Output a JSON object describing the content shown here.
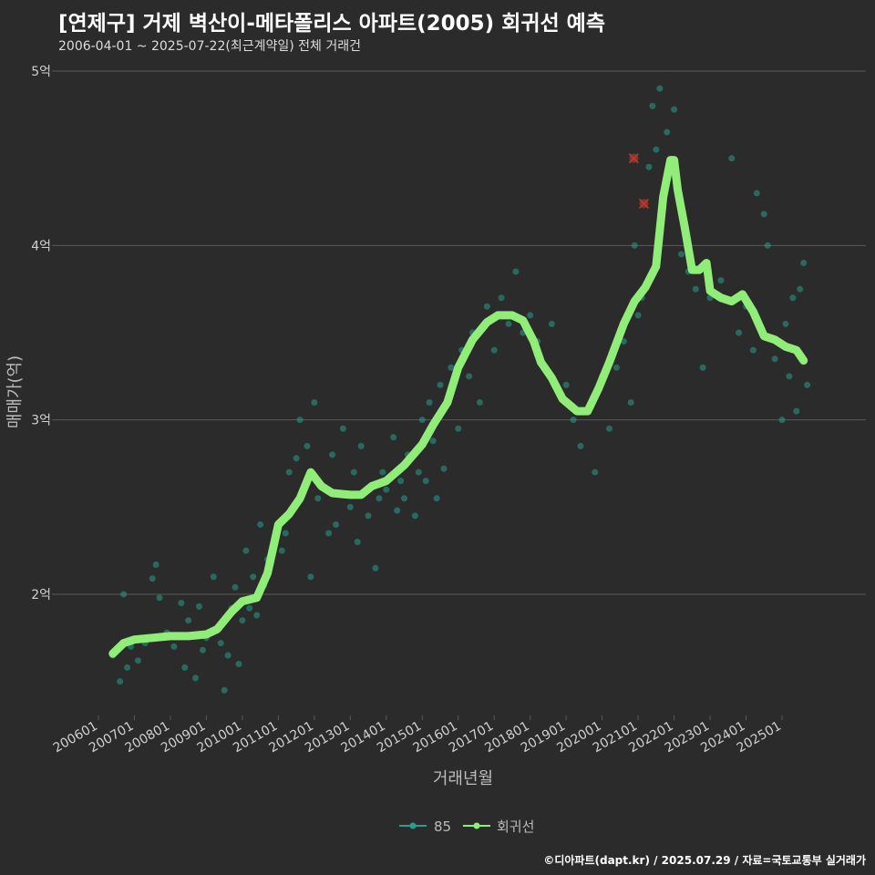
{
  "title": "[연제구] 거제 벽산이-메타폴리스 아파트(2005) 회귀선 예측",
  "subtitle": "2006-04-01 ~ 2025-07-22(최근계약일) 전체 거래건",
  "footer": "©디아파트(dapt.kr) / 2025.07.29 / 자료=국토교통부 실거래가",
  "colors": {
    "background": "#2b2b2c",
    "grid": "#5a5a5a",
    "scatter": "#2a9d8f",
    "line": "#90ee78",
    "outlier": "#c0392b",
    "text": "#cfcfcf"
  },
  "chart_data": {
    "type": "scatter",
    "xlabel": "거래년월",
    "ylabel": "매매가(억)",
    "x_unit": "year-fraction",
    "xlim": [
      2006.0,
      2026.5
    ],
    "ylim": [
      1.3,
      5.1
    ],
    "grid": true,
    "y_ticks": [
      {
        "value": 2,
        "label": "2억"
      },
      {
        "value": 3,
        "label": "3억"
      },
      {
        "value": 4,
        "label": "4억"
      },
      {
        "value": 5,
        "label": "5억"
      }
    ],
    "x_ticks": [
      {
        "value": 2006.0,
        "label": "200601"
      },
      {
        "value": 2007.0,
        "label": "200701"
      },
      {
        "value": 2008.0,
        "label": "200801"
      },
      {
        "value": 2009.0,
        "label": "200901"
      },
      {
        "value": 2010.0,
        "label": "201001"
      },
      {
        "value": 2011.0,
        "label": "201101"
      },
      {
        "value": 2012.0,
        "label": "201201"
      },
      {
        "value": 2013.0,
        "label": "201301"
      },
      {
        "value": 2014.0,
        "label": "201401"
      },
      {
        "value": 2015.0,
        "label": "201501"
      },
      {
        "value": 2016.0,
        "label": "201601"
      },
      {
        "value": 2017.0,
        "label": "201701"
      },
      {
        "value": 2018.0,
        "label": "201801"
      },
      {
        "value": 2019.0,
        "label": "201901"
      },
      {
        "value": 2020.0,
        "label": "202001"
      },
      {
        "value": 2021.0,
        "label": "202101"
      },
      {
        "value": 2022.0,
        "label": "202201"
      },
      {
        "value": 2023.0,
        "label": "202301"
      },
      {
        "value": 2024.0,
        "label": "202401"
      },
      {
        "value": 2025.0,
        "label": "202501"
      }
    ],
    "legend": {
      "placement": "bottom",
      "items": [
        "85",
        "회귀선"
      ]
    },
    "series": [
      {
        "name": "85",
        "kind": "scatter",
        "points": [
          [
            2006.4,
            1.65
          ],
          [
            2006.6,
            1.5
          ],
          [
            2006.7,
            2.0
          ],
          [
            2006.8,
            1.58
          ],
          [
            2006.9,
            1.7
          ],
          [
            2007.1,
            1.62
          ],
          [
            2007.3,
            1.72
          ],
          [
            2007.5,
            2.09
          ],
          [
            2007.6,
            2.17
          ],
          [
            2007.7,
            1.98
          ],
          [
            2007.9,
            1.78
          ],
          [
            2008.1,
            1.7
          ],
          [
            2008.3,
            1.95
          ],
          [
            2008.4,
            1.58
          ],
          [
            2008.5,
            1.85
          ],
          [
            2008.7,
            1.52
          ],
          [
            2008.8,
            1.93
          ],
          [
            2008.9,
            1.68
          ],
          [
            2009.0,
            1.75
          ],
          [
            2009.2,
            2.1
          ],
          [
            2009.3,
            1.8
          ],
          [
            2009.4,
            1.72
          ],
          [
            2009.5,
            1.45
          ],
          [
            2009.6,
            1.65
          ],
          [
            2009.7,
            1.92
          ],
          [
            2009.8,
            2.04
          ],
          [
            2009.9,
            1.6
          ],
          [
            2010.0,
            1.85
          ],
          [
            2010.1,
            2.25
          ],
          [
            2010.2,
            1.92
          ],
          [
            2010.3,
            2.1
          ],
          [
            2010.4,
            1.88
          ],
          [
            2010.5,
            2.4
          ],
          [
            2010.6,
            2.05
          ],
          [
            2010.7,
            2.2
          ],
          [
            2010.8,
            2.18
          ],
          [
            2010.9,
            2.3
          ],
          [
            2011.0,
            2.4
          ],
          [
            2011.1,
            2.25
          ],
          [
            2011.2,
            2.35
          ],
          [
            2011.3,
            2.7
          ],
          [
            2011.5,
            2.78
          ],
          [
            2011.6,
            3.0
          ],
          [
            2011.7,
            2.6
          ],
          [
            2011.8,
            2.85
          ],
          [
            2011.9,
            2.1
          ],
          [
            2012.0,
            3.1
          ],
          [
            2012.1,
            2.55
          ],
          [
            2012.2,
            2.62
          ],
          [
            2012.4,
            2.35
          ],
          [
            2012.5,
            2.8
          ],
          [
            2012.6,
            2.4
          ],
          [
            2012.8,
            2.95
          ],
          [
            2013.0,
            2.5
          ],
          [
            2013.1,
            2.7
          ],
          [
            2013.2,
            2.3
          ],
          [
            2013.3,
            2.85
          ],
          [
            2013.5,
            2.45
          ],
          [
            2013.7,
            2.15
          ],
          [
            2013.8,
            2.55
          ],
          [
            2013.9,
            2.7
          ],
          [
            2014.0,
            2.6
          ],
          [
            2014.2,
            2.9
          ],
          [
            2014.3,
            2.48
          ],
          [
            2014.4,
            2.65
          ],
          [
            2014.5,
            2.55
          ],
          [
            2014.6,
            2.8
          ],
          [
            2014.8,
            2.45
          ],
          [
            2014.9,
            2.7
          ],
          [
            2015.0,
            3.0
          ],
          [
            2015.1,
            2.65
          ],
          [
            2015.2,
            3.1
          ],
          [
            2015.3,
            2.88
          ],
          [
            2015.4,
            2.55
          ],
          [
            2015.5,
            3.2
          ],
          [
            2015.6,
            2.72
          ],
          [
            2015.8,
            3.3
          ],
          [
            2016.0,
            2.95
          ],
          [
            2016.1,
            3.4
          ],
          [
            2016.3,
            3.25
          ],
          [
            2016.4,
            3.5
          ],
          [
            2016.6,
            3.1
          ],
          [
            2016.8,
            3.65
          ],
          [
            2017.0,
            3.4
          ],
          [
            2017.2,
            3.7
          ],
          [
            2017.4,
            3.55
          ],
          [
            2017.6,
            3.85
          ],
          [
            2017.8,
            3.5
          ],
          [
            2018.0,
            3.6
          ],
          [
            2018.2,
            3.45
          ],
          [
            2018.4,
            3.3
          ],
          [
            2018.6,
            3.55
          ],
          [
            2018.8,
            3.15
          ],
          [
            2019.0,
            3.2
          ],
          [
            2019.2,
            3.0
          ],
          [
            2019.4,
            2.85
          ],
          [
            2019.6,
            3.05
          ],
          [
            2019.8,
            2.7
          ],
          [
            2020.0,
            3.25
          ],
          [
            2020.2,
            2.95
          ],
          [
            2020.4,
            3.3
          ],
          [
            2020.6,
            3.45
          ],
          [
            2020.8,
            3.1
          ],
          [
            2020.9,
            4.0
          ],
          [
            2021.0,
            3.6
          ],
          [
            2021.1,
            3.7
          ],
          [
            2021.3,
            4.45
          ],
          [
            2021.4,
            4.8
          ],
          [
            2021.5,
            4.55
          ],
          [
            2021.6,
            4.9
          ],
          [
            2021.8,
            4.65
          ],
          [
            2022.0,
            4.78
          ],
          [
            2022.2,
            3.95
          ],
          [
            2022.4,
            3.85
          ],
          [
            2022.6,
            3.75
          ],
          [
            2022.8,
            3.3
          ],
          [
            2023.0,
            3.7
          ],
          [
            2023.3,
            3.8
          ],
          [
            2023.6,
            4.5
          ],
          [
            2023.8,
            3.5
          ],
          [
            2024.0,
            3.65
          ],
          [
            2024.2,
            3.4
          ],
          [
            2024.3,
            4.3
          ],
          [
            2024.5,
            4.18
          ],
          [
            2024.6,
            4.0
          ],
          [
            2024.8,
            3.35
          ],
          [
            2025.0,
            3.0
          ],
          [
            2025.1,
            3.55
          ],
          [
            2025.2,
            3.25
          ],
          [
            2025.3,
            3.7
          ],
          [
            2025.4,
            3.05
          ],
          [
            2025.5,
            3.75
          ],
          [
            2025.6,
            3.9
          ],
          [
            2025.7,
            3.2
          ]
        ]
      },
      {
        "name": "회귀선",
        "kind": "line",
        "points": [
          [
            2006.4,
            1.66
          ],
          [
            2006.7,
            1.72
          ],
          [
            2007.0,
            1.74
          ],
          [
            2007.5,
            1.75
          ],
          [
            2008.0,
            1.76
          ],
          [
            2008.5,
            1.76
          ],
          [
            2009.0,
            1.77
          ],
          [
            2009.3,
            1.8
          ],
          [
            2009.7,
            1.9
          ],
          [
            2010.0,
            1.96
          ],
          [
            2010.4,
            1.98
          ],
          [
            2010.7,
            2.12
          ],
          [
            2011.0,
            2.4
          ],
          [
            2011.3,
            2.46
          ],
          [
            2011.6,
            2.55
          ],
          [
            2011.9,
            2.7
          ],
          [
            2012.2,
            2.62
          ],
          [
            2012.5,
            2.58
          ],
          [
            2013.0,
            2.57
          ],
          [
            2013.3,
            2.57
          ],
          [
            2013.6,
            2.62
          ],
          [
            2014.0,
            2.65
          ],
          [
            2014.5,
            2.74
          ],
          [
            2015.0,
            2.86
          ],
          [
            2015.3,
            2.97
          ],
          [
            2015.7,
            3.1
          ],
          [
            2016.0,
            3.3
          ],
          [
            2016.4,
            3.46
          ],
          [
            2016.8,
            3.56
          ],
          [
            2017.1,
            3.6
          ],
          [
            2017.5,
            3.6
          ],
          [
            2017.8,
            3.57
          ],
          [
            2018.1,
            3.45
          ],
          [
            2018.3,
            3.33
          ],
          [
            2018.6,
            3.24
          ],
          [
            2018.9,
            3.12
          ],
          [
            2019.3,
            3.05
          ],
          [
            2019.6,
            3.05
          ],
          [
            2019.9,
            3.18
          ],
          [
            2020.2,
            3.33
          ],
          [
            2020.6,
            3.55
          ],
          [
            2020.9,
            3.68
          ],
          [
            2021.2,
            3.76
          ],
          [
            2021.5,
            3.88
          ],
          [
            2021.7,
            4.28
          ],
          [
            2021.9,
            4.49
          ],
          [
            2022.0,
            4.49
          ],
          [
            2022.1,
            4.32
          ],
          [
            2022.3,
            4.1
          ],
          [
            2022.5,
            3.86
          ],
          [
            2022.7,
            3.86
          ],
          [
            2022.9,
            3.9
          ],
          [
            2023.0,
            3.74
          ],
          [
            2023.3,
            3.7
          ],
          [
            2023.6,
            3.68
          ],
          [
            2023.9,
            3.72
          ],
          [
            2024.2,
            3.62
          ],
          [
            2024.5,
            3.48
          ],
          [
            2024.8,
            3.46
          ],
          [
            2025.1,
            3.42
          ],
          [
            2025.4,
            3.4
          ],
          [
            2025.6,
            3.34
          ]
        ]
      }
    ],
    "outliers": [
      [
        2020.88,
        4.5
      ],
      [
        2021.16,
        4.24
      ]
    ]
  }
}
